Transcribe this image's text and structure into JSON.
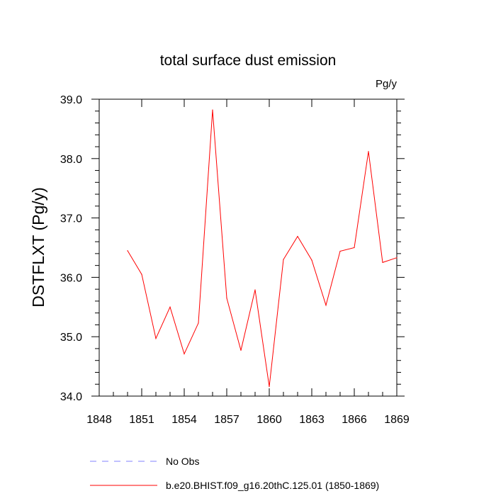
{
  "chart_data": {
    "type": "line",
    "title": "total surface dust emission",
    "units_label": "Pg/y",
    "ylabel": "DSTFLXT  (Pg/y)",
    "xlabel": "",
    "xlim": [
      1848,
      1869
    ],
    "ylim": [
      34.0,
      39.0
    ],
    "x_ticks": [
      "1848",
      "1851",
      "1854",
      "1857",
      "1860",
      "1863",
      "1866",
      "1869"
    ],
    "y_ticks": [
      "34.0",
      "35.0",
      "36.0",
      "37.0",
      "38.0",
      "39.0"
    ],
    "grid": false,
    "legend_position": "bottom",
    "series": [
      {
        "name": "b.e20.BHIST.f09_g16.20thC.125.01 (1850-1869)",
        "color": "#ff0000",
        "dash": "solid",
        "x": [
          1850,
          1851,
          1852,
          1853,
          1854,
          1855,
          1856,
          1857,
          1858,
          1859,
          1860,
          1861,
          1862,
          1863,
          1864,
          1865,
          1866,
          1867,
          1868,
          1869
        ],
        "y": [
          36.45,
          36.05,
          34.97,
          35.5,
          34.71,
          35.23,
          38.82,
          35.65,
          34.77,
          35.79,
          34.16,
          36.3,
          36.69,
          36.29,
          35.53,
          36.44,
          36.5,
          38.12,
          36.25,
          36.33
        ]
      }
    ],
    "legend": [
      {
        "label": "No Obs",
        "color": "#8080ff",
        "dash": "dashed"
      },
      {
        "label": "b.e20.BHIST.f09_g16.20thC.125.01 (1850-1869)",
        "color": "#ff0000",
        "dash": "solid"
      }
    ]
  }
}
